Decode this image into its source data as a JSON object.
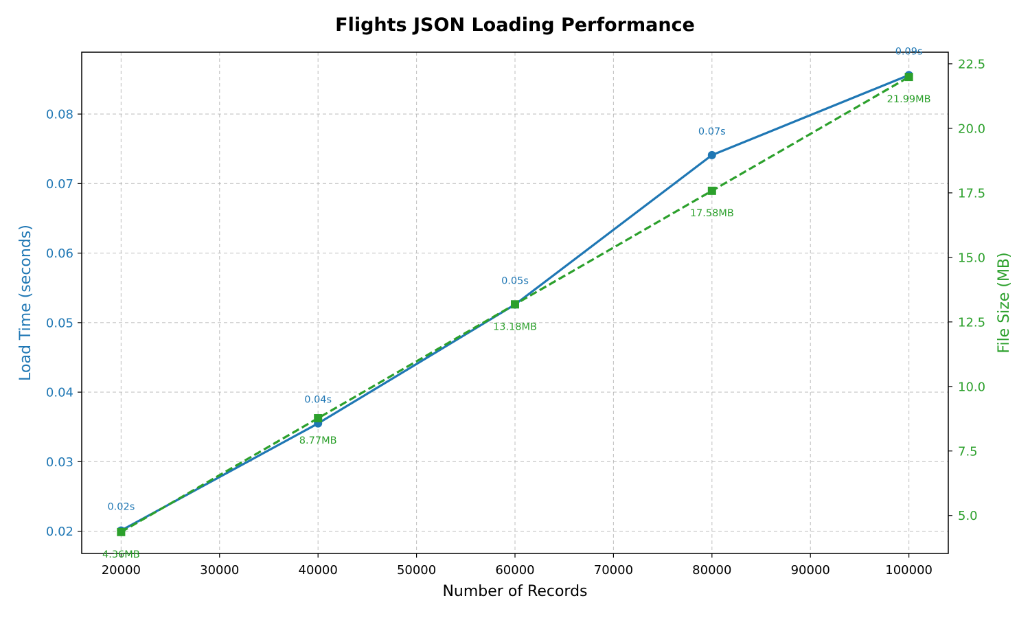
{
  "chart_data": {
    "type": "line",
    "title": "Flights JSON Loading Performance",
    "xlabel": "Number of Records",
    "x": [
      20000,
      40000,
      60000,
      80000,
      100000
    ],
    "xticks": [
      "20000",
      "30000",
      "40000",
      "50000",
      "60000",
      "70000",
      "80000",
      "90000",
      "100000"
    ],
    "xlim": [
      16000,
      104000
    ],
    "grid": true,
    "left_axis": {
      "label": "Load Time (seconds)",
      "color": "#1f77b4",
      "ylim": [
        0.0168,
        0.0889
      ],
      "ticks": [
        "0.02",
        "0.03",
        "0.04",
        "0.05",
        "0.06",
        "0.07",
        "0.08"
      ]
    },
    "right_axis": {
      "label": "File Size (MB)",
      "color": "#2ca02c",
      "ylim": [
        3.53,
        22.95
      ],
      "ticks": [
        "5.0",
        "7.5",
        "10.0",
        "12.5",
        "15.0",
        "17.5",
        "20.0",
        "22.5"
      ]
    },
    "series": [
      {
        "axis": "left",
        "color": "#1f77b4",
        "line_style": "solid",
        "marker": "circle",
        "values": [
          0.0201,
          0.0355,
          0.0526,
          0.0741,
          0.0856
        ],
        "labels": [
          "0.02s",
          "0.04s",
          "0.05s",
          "0.07s",
          "0.09s"
        ]
      },
      {
        "axis": "right",
        "color": "#2ca02c",
        "line_style": "dashed",
        "marker": "square",
        "values": [
          4.36,
          8.77,
          13.18,
          17.58,
          21.99
        ],
        "labels": [
          "4.36MB",
          "8.77MB",
          "13.18MB",
          "17.58MB",
          "21.99MB"
        ]
      }
    ]
  }
}
